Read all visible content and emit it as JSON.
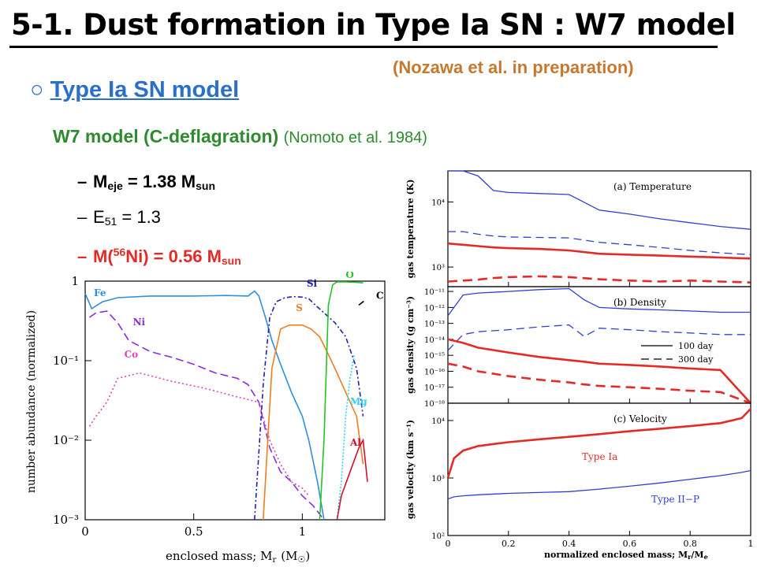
{
  "slide": {
    "title": "5-1. Dust formation in Type Ia SN : W7 model",
    "credit": "(Nozawa et al. in preparation)",
    "section_marker": "○",
    "section_label": "Type Ia SN model",
    "model_name": "W7 model (C-deflagration)",
    "model_ref": "(Nomoto et al. 1984)",
    "bullets": [
      {
        "dash": "–",
        "a": "M",
        "sub_a": "eje",
        "b": " = 1.38 M",
        "sub_b": "sun"
      },
      {
        "dash": "–",
        "a": "E",
        "sub_a": "51",
        "b": " = 1.3"
      },
      {
        "dash": "–",
        "a": "M(",
        "sup_a": "56",
        "b": "Ni) = 0.56 M",
        "sub_b": "sun"
      }
    ]
  },
  "colors": {
    "title": "#000000",
    "credit": "#c8782e",
    "section": "#2a6fc9",
    "model": "#2e8b2e",
    "highlight": "#e52a25",
    "line_blue": "#2f3fd6",
    "line_red": "#e52a25"
  },
  "chart_data": [
    {
      "type": "line",
      "xlabel": "enclosed mass; M",
      "xlabel_sub": "r",
      "xlabel_unit": "(M",
      "xlabel_unit_sub": "☉",
      "xlabel_unit_close": ")",
      "ylabel": "number abundance (normalized)",
      "xlim": [
        0,
        1.38
      ],
      "ylim": [
        0.001,
        1
      ],
      "yscale": "log",
      "x_ticks": [
        "0",
        "0.5",
        "1"
      ],
      "y_ticks": [
        "1",
        "10⁻¹",
        "10⁻²",
        "10⁻³"
      ],
      "series": [
        {
          "name": "Fe",
          "color": "#2c8fe0",
          "x": [
            0,
            0.03,
            0.08,
            0.15,
            0.3,
            0.5,
            0.65,
            0.75,
            0.78,
            0.8,
            0.83,
            0.86,
            0.9,
            0.95,
            1.0,
            1.03,
            1.07,
            1.1
          ],
          "y": [
            0.7,
            0.45,
            0.55,
            0.62,
            0.65,
            0.65,
            0.66,
            0.65,
            0.75,
            0.65,
            0.35,
            0.18,
            0.09,
            0.04,
            0.02,
            0.01,
            0.003,
            0.001
          ]
        },
        {
          "name": "Ni",
          "color": "#8a2be2",
          "x": [
            0.02,
            0.05,
            0.1,
            0.15,
            0.2,
            0.3,
            0.4,
            0.5,
            0.6,
            0.7,
            0.75,
            0.8,
            0.85,
            0.9,
            0.95,
            1.0,
            1.05,
            1.1
          ],
          "y": [
            0.35,
            0.4,
            0.42,
            0.3,
            0.18,
            0.13,
            0.11,
            0.09,
            0.07,
            0.06,
            0.05,
            0.03,
            0.008,
            0.004,
            0.003,
            0.002,
            0.0015,
            0.001
          ]
        },
        {
          "name": "Co",
          "color": "#e040c0",
          "x": [
            0.02,
            0.05,
            0.1,
            0.15,
            0.25,
            0.4,
            0.55,
            0.7,
            0.8,
            0.85,
            0.9,
            0.95,
            1.0,
            1.03
          ],
          "y": [
            0.015,
            0.02,
            0.03,
            0.06,
            0.07,
            0.055,
            0.045,
            0.035,
            0.03,
            0.01,
            0.005,
            0.003,
            0.0025,
            0.002
          ]
        },
        {
          "name": "Si",
          "color": "#2020b0",
          "x": [
            0.78,
            0.82,
            0.85,
            0.88,
            0.92,
            0.96,
            1.0,
            1.03,
            1.06,
            1.1,
            1.15,
            1.2,
            1.25,
            1.28
          ],
          "y": [
            0.001,
            0.05,
            0.35,
            0.55,
            0.62,
            0.64,
            0.63,
            0.6,
            0.5,
            0.4,
            0.3,
            0.2,
            0.08,
            0.02
          ]
        },
        {
          "name": "S",
          "color": "#f07d20",
          "x": [
            0.82,
            0.86,
            0.9,
            0.94,
            1.0,
            1.04,
            1.08,
            1.12,
            1.16,
            1.2,
            1.25,
            1.28
          ],
          "y": [
            0.001,
            0.08,
            0.25,
            0.28,
            0.28,
            0.25,
            0.2,
            0.12,
            0.07,
            0.04,
            0.02,
            0.005
          ]
        },
        {
          "name": "O",
          "color": "#25c425",
          "x": [
            1.08,
            1.1,
            1.12,
            1.14,
            1.16,
            1.2,
            1.24,
            1.28
          ],
          "y": [
            0.001,
            0.01,
            0.5,
            0.9,
            0.98,
            0.98,
            0.97,
            0.95
          ]
        },
        {
          "name": "Mg",
          "color": "#30d0f0",
          "x": [
            1.16,
            1.18,
            1.2,
            1.22,
            1.24
          ],
          "y": [
            0.001,
            0.003,
            0.02,
            0.06,
            0.12
          ]
        },
        {
          "name": "Al",
          "color": "#d01030",
          "x": [
            1.16,
            1.18,
            1.22,
            1.26,
            1.28,
            1.3
          ],
          "y": [
            0.001,
            0.002,
            0.004,
            0.008,
            0.01,
            0.003
          ]
        },
        {
          "name": "C",
          "color": "#000000",
          "x": [
            1.26,
            1.28,
            1.3
          ],
          "y": [
            0.5,
            0.55,
            0.6
          ]
        }
      ]
    },
    {
      "type": "line",
      "panels": [
        {
          "label": "(a) Temperature",
          "ylabel": "gas temperature (K)",
          "yscale": "log",
          "ylim": [
            500,
            30000
          ],
          "y_ticks": [
            "10⁴",
            "10³"
          ]
        },
        {
          "label": "(b) Density",
          "ylabel": "gas density (g cm⁻³)",
          "yscale": "log",
          "ylim": [
            1e-18,
            2e-11
          ],
          "y_ticks": [
            "10⁻¹¹",
            "10⁻¹²",
            "10⁻¹³",
            "10⁻¹⁴",
            "10⁻¹⁵",
            "10⁻¹⁶",
            "10⁻¹⁷",
            "10⁻¹⁸"
          ]
        },
        {
          "label": "(c) Velocity",
          "ylabel": "gas velocity (km s⁻¹)",
          "yscale": "log",
          "ylim": [
            100,
            20000
          ],
          "y_ticks": [
            "10⁴",
            "10³",
            "10²"
          ]
        }
      ],
      "xlabel": "normalized enclosed mass; M",
      "xlabel_sub": "r",
      "xlabel_slash": "/M",
      "xlabel_sub2": "e",
      "xlim": [
        0,
        1
      ],
      "x_ticks": [
        "0",
        "0.2",
        "0.4",
        "0.6",
        "0.8",
        "1"
      ],
      "legend": [
        "100 day",
        "300 day"
      ],
      "annotations": [
        "Type Ia",
        "Type II−P"
      ],
      "temperature": {
        "x": [
          0,
          0.05,
          0.1,
          0.15,
          0.2,
          0.3,
          0.4,
          0.5,
          0.6,
          0.7,
          0.8,
          0.9,
          1.0
        ],
        "blue_100": [
          30000,
          30000,
          25000,
          15000,
          14000,
          13500,
          13000,
          7500,
          6500,
          5500,
          4800,
          4200,
          3800
        ],
        "blue_300": [
          3500,
          3500,
          3200,
          3000,
          2900,
          2850,
          2800,
          2400,
          2200,
          2000,
          1800,
          1650,
          1550
        ],
        "red_100": [
          2300,
          2200,
          2100,
          2000,
          1950,
          1900,
          1800,
          1600,
          1550,
          1500,
          1450,
          1400,
          1350
        ],
        "red_300": [
          600,
          620,
          640,
          680,
          700,
          720,
          700,
          650,
          620,
          600,
          620,
          600,
          580
        ]
      },
      "density": {
        "x": [
          0,
          0.05,
          0.1,
          0.2,
          0.3,
          0.4,
          0.45,
          0.5,
          0.6,
          0.7,
          0.8,
          0.9,
          1.0
        ],
        "blue_100": [
          3e-13,
          6e-12,
          8e-12,
          1e-11,
          1.3e-11,
          1.5e-11,
          3e-12,
          1e-12,
          8e-13,
          7e-13,
          6e-13,
          5e-13,
          5e-13
        ],
        "blue_300": [
          2e-15,
          2e-14,
          3e-14,
          4e-14,
          6e-14,
          8e-14,
          1.5e-14,
          5e-14,
          4e-14,
          3e-14,
          2.5e-14,
          2e-14,
          2e-14
        ],
        "red_100": [
          1e-14,
          6e-15,
          3e-15,
          1.5e-15,
          8e-16,
          5e-16,
          4e-16,
          3e-16,
          2.5e-16,
          2e-16,
          1.5e-16,
          1.2e-16,
          1e-18
        ],
        "red_300": [
          3e-16,
          2e-16,
          1e-16,
          5e-17,
          3e-17,
          2e-17,
          1.5e-17,
          1.2e-17,
          1e-17,
          8e-18,
          6e-18,
          5e-18,
          1e-18
        ]
      },
      "velocity": {
        "x": [
          0,
          0.02,
          0.05,
          0.1,
          0.2,
          0.3,
          0.4,
          0.5,
          0.6,
          0.7,
          0.8,
          0.9,
          0.97,
          1.0
        ],
        "type_ia": [
          1000,
          2200,
          3000,
          3600,
          4200,
          4700,
          5200,
          5800,
          6500,
          7200,
          8000,
          9000,
          11000,
          16000
        ],
        "type_iip": [
          430,
          470,
          490,
          510,
          540,
          560,
          580,
          640,
          720,
          820,
          950,
          1100,
          1250,
          1350
        ]
      }
    }
  ]
}
